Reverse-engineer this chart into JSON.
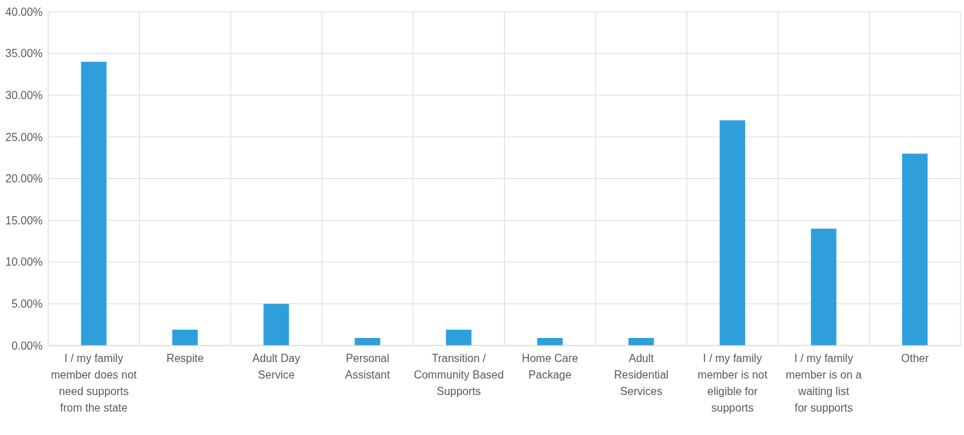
{
  "chart_data": {
    "type": "bar",
    "categories": [
      "I / my family member does not need supports from the state",
      "Respite",
      "Adult Day Service",
      "Personal Assistant",
      "Transition / Community Based Supports",
      "Home Care Package",
      "Adult Residential Services",
      "I / my family member is not eligible for supports",
      "I / my family member is on a waiting list for supports",
      "Other"
    ],
    "values": [
      34,
      1.9,
      5,
      0.9,
      1.9,
      0.9,
      0.9,
      27,
      14,
      23
    ],
    "color": "#2e9fdb",
    "ylim": [
      0,
      40
    ],
    "yticks": [
      {
        "value": 0,
        "label": "0.00%"
      },
      {
        "value": 5,
        "label": "5.00%"
      },
      {
        "value": 10,
        "label": "10.00%"
      },
      {
        "value": 15,
        "label": "15.00%"
      },
      {
        "value": 20,
        "label": "20.00%"
      },
      {
        "value": 25,
        "label": "25.00%"
      },
      {
        "value": 30,
        "label": "30.00%"
      },
      {
        "value": 35,
        "label": "35.00%"
      },
      {
        "value": 40,
        "label": "40.00%"
      }
    ],
    "grid": true
  }
}
